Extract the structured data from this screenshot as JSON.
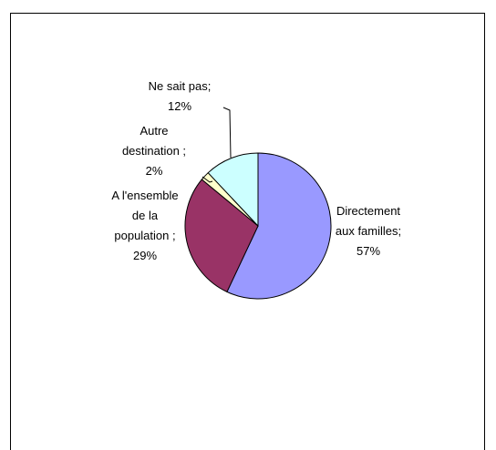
{
  "chart_data": {
    "type": "pie",
    "title": "",
    "legend": "none",
    "categories": [
      "Directement aux familles;",
      "A l'ensemble de la population ;",
      "Autre destination ;",
      "Ne sait pas;"
    ],
    "values": [
      57,
      29,
      2,
      12
    ],
    "labels": [
      {
        "lines": [
          "Directement",
          "aux familles;",
          "57%"
        ]
      },
      {
        "lines": [
          "A l'ensemble",
          "de la",
          "population ;",
          "29%"
        ]
      },
      {
        "lines": [
          "Autre",
          "destination ;",
          "2%"
        ]
      },
      {
        "lines": [
          "Ne sait pas;",
          "12%"
        ]
      }
    ],
    "colors": [
      "#9999ff",
      "#993366",
      "#ffffcc",
      "#ccffff"
    ],
    "start_angle_deg": 0,
    "direction": "clockwise"
  }
}
